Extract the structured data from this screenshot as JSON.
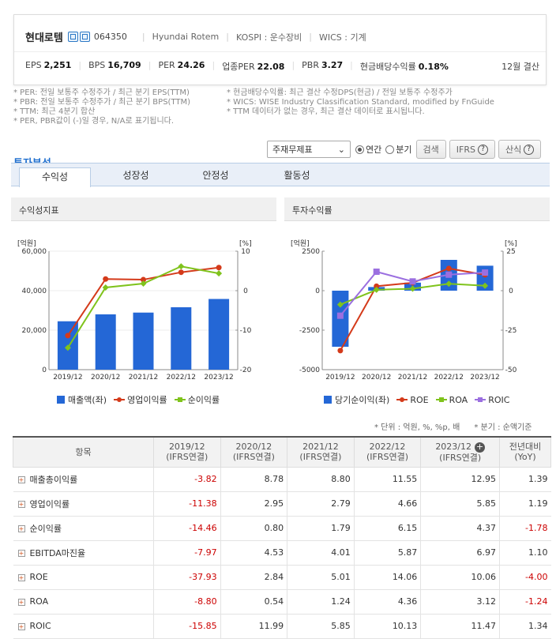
{
  "company": {
    "name": "현대로템",
    "code": "064350",
    "eng_name": "Hyundai Rotem",
    "market": "KOSPI : 운수장비",
    "wics": "WICS : 기계"
  },
  "metrics": [
    {
      "label": "EPS",
      "value": "2,251"
    },
    {
      "label": "BPS",
      "value": "16,709"
    },
    {
      "label": "PER",
      "value": "24.26"
    },
    {
      "label": "업종PER",
      "value": "22.08"
    },
    {
      "label": "PBR",
      "value": "3.27"
    },
    {
      "label": "현금배당수익률",
      "value": "0.18%"
    }
  ],
  "fiscal": "12월 결산",
  "notes_left": [
    "* PER: 전일 보통주 수정주가 / 최근 분기 EPS(TTM)",
    "* PBR: 전일 보통주 수정주가 / 최근 분기 BPS(TTM)",
    "* TTM: 최근 4분기 합산",
    "* PER, PBR값이 (-)일 경우, N/A로 표기됩니다."
  ],
  "notes_right": [
    "* 현금배당수익률: 최근 결산 수정DPS(현금) / 전일 보통주 수정주가",
    "* WICS: WISE Industry Classification Standard, modified by FnGuide",
    "* TTM 데이터가 없는 경우, 최근 결산 데이터로 표시됩니다."
  ],
  "section_title": "투자분석",
  "controls": {
    "select": "주재무제표",
    "annual": "연간",
    "quarter": "분기",
    "search": "검색",
    "ifrs": "IFRS",
    "formula": "산식",
    "help": "?"
  },
  "tabs": [
    "수익성",
    "성장성",
    "안정성",
    "활동성"
  ],
  "panel1_title": "수익성지표",
  "panel2_title": "투자수익률",
  "chart_data": [
    {
      "type": "bar",
      "title": "수익성지표",
      "categories": [
        "2019/12",
        "2020/12",
        "2021/12",
        "2022/12",
        "2023/12"
      ],
      "left_unit": "[억원]",
      "right_unit": "[%]",
      "left_ticks": [
        "60,000",
        "40,000",
        "20,000",
        "0"
      ],
      "right_ticks": [
        "10",
        "0",
        "-10",
        "-20"
      ],
      "ylim": [
        0,
        60000
      ],
      "y2lim": [
        -20,
        10
      ],
      "bars": {
        "name": "매출액(좌)",
        "color": "#2467d6",
        "values": [
          24500,
          28000,
          28900,
          31600,
          35800
        ]
      },
      "series": [
        {
          "name": "영업이익률",
          "color": "#d43a1a",
          "marker": "circle",
          "values": [
            -11.38,
            2.95,
            2.79,
            4.66,
            5.85
          ]
        },
        {
          "name": "순이익률",
          "color": "#7fc31c",
          "marker": "diamond",
          "values": [
            -14.46,
            0.8,
            1.79,
            6.15,
            4.37
          ]
        }
      ]
    },
    {
      "type": "bar",
      "title": "투자수익률",
      "categories": [
        "2019/12",
        "2020/12",
        "2021/12",
        "2022/12",
        "2023/12"
      ],
      "left_unit": "[억원]",
      "right_unit": "[%]",
      "left_ticks": [
        "2500",
        "0",
        "-2500",
        "-5000"
      ],
      "right_ticks": [
        "25",
        "0",
        "-25",
        "-50"
      ],
      "ylim": [
        -5000,
        2500
      ],
      "y2lim": [
        -50,
        25
      ],
      "bars": {
        "name": "당기순이익(좌)",
        "color": "#2467d6",
        "values": [
          -3550,
          230,
          510,
          1950,
          1580
        ]
      },
      "series": [
        {
          "name": "ROE",
          "color": "#d43a1a",
          "marker": "circle",
          "values": [
            -37.93,
            2.84,
            5.01,
            14.06,
            10.06
          ]
        },
        {
          "name": "ROA",
          "color": "#7fc31c",
          "marker": "diamond",
          "values": [
            -8.8,
            0.54,
            1.24,
            4.36,
            3.12
          ]
        },
        {
          "name": "ROIC",
          "color": "#9b6fe0",
          "marker": "square",
          "values": [
            -15.85,
            11.99,
            5.85,
            10.13,
            11.47
          ]
        }
      ]
    }
  ],
  "unit_note": "* 단위 : 억원, %, %p, 배",
  "unit_note2": "* 분기 : 순액기준",
  "table": {
    "head_item": "항목",
    "cols": [
      [
        "2019/12",
        "(IFRS연결)"
      ],
      [
        "2020/12",
        "(IFRS연결)"
      ],
      [
        "2021/12",
        "(IFRS연결)"
      ],
      [
        "2022/12",
        "(IFRS연결)"
      ],
      [
        "2023/12",
        "(IFRS연결)"
      ],
      [
        "전년대비",
        "(YoY)"
      ]
    ],
    "rows": [
      {
        "label": "매출총이익률",
        "v": [
          "-3.82",
          "8.78",
          "8.80",
          "11.55",
          "12.95",
          "1.39"
        ]
      },
      {
        "label": "영업이익률",
        "v": [
          "-11.38",
          "2.95",
          "2.79",
          "4.66",
          "5.85",
          "1.19"
        ]
      },
      {
        "label": "순이익률",
        "v": [
          "-14.46",
          "0.80",
          "1.79",
          "6.15",
          "4.37",
          "-1.78"
        ]
      },
      {
        "label": "EBITDA마진율",
        "v": [
          "-7.97",
          "4.53",
          "4.01",
          "5.87",
          "6.97",
          "1.10"
        ]
      },
      {
        "label": "ROE",
        "v": [
          "-37.93",
          "2.84",
          "5.01",
          "14.06",
          "10.06",
          "-4.00"
        ]
      },
      {
        "label": "ROA",
        "v": [
          "-8.80",
          "0.54",
          "1.24",
          "4.36",
          "3.12",
          "-1.24"
        ]
      },
      {
        "label": "ROIC",
        "v": [
          "-15.85",
          "11.99",
          "5.85",
          "10.13",
          "11.47",
          "1.34"
        ]
      }
    ]
  }
}
